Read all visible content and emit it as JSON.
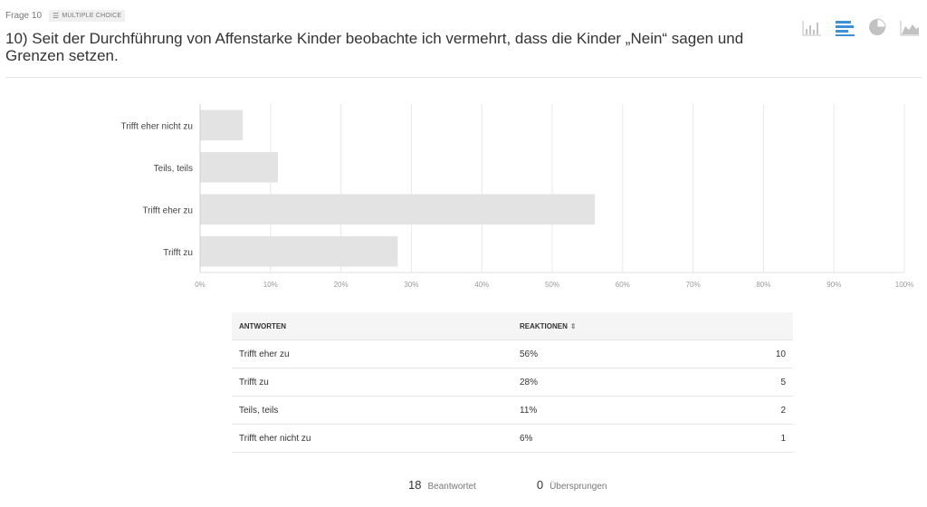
{
  "header": {
    "question_number": "Frage 10",
    "type_badge": "MULTIPLE CHOICE",
    "title": "10) Seit der Durchführung von Affenstarke Kinder beobachte ich vermehrt, dass die Kinder „Nein“ sagen und Grenzen setzen."
  },
  "view_buttons": [
    {
      "icon": "vertical-bar-chart-icon",
      "active": false
    },
    {
      "icon": "horizontal-bar-chart-icon",
      "active": true
    },
    {
      "icon": "pie-chart-icon",
      "active": false
    },
    {
      "icon": "area-chart-icon",
      "active": false
    }
  ],
  "colors": {
    "bar": "#e3e3e3",
    "grid": "#e8e8e8",
    "accent": "#3d8fd6",
    "icon_inactive": "#c2c2c2"
  },
  "chart_data": {
    "type": "bar",
    "orientation": "horizontal",
    "categories": [
      "Trifft eher nicht zu",
      "Teils, teils",
      "Trifft eher zu",
      "Trifft zu"
    ],
    "values": [
      6,
      11,
      56,
      28
    ],
    "unit": "%",
    "xlim": [
      0,
      100
    ],
    "xticks": [
      "0%",
      "10%",
      "20%",
      "30%",
      "40%",
      "50%",
      "60%",
      "70%",
      "80%",
      "90%",
      "100%"
    ],
    "grid": true
  },
  "table": {
    "headers": {
      "answers": "ANTWORTEN",
      "responses": "REAKTIONEN"
    },
    "rows": [
      {
        "answer": "Trifft eher zu",
        "percent": "56%",
        "count": "10"
      },
      {
        "answer": "Trifft zu",
        "percent": "28%",
        "count": "5"
      },
      {
        "answer": "Teils, teils",
        "percent": "11%",
        "count": "2"
      },
      {
        "answer": "Trifft eher nicht zu",
        "percent": "6%",
        "count": "1"
      }
    ]
  },
  "summary": {
    "answered_count": "18",
    "answered_label": "Beantwortet",
    "skipped_count": "0",
    "skipped_label": "Übersprungen"
  }
}
